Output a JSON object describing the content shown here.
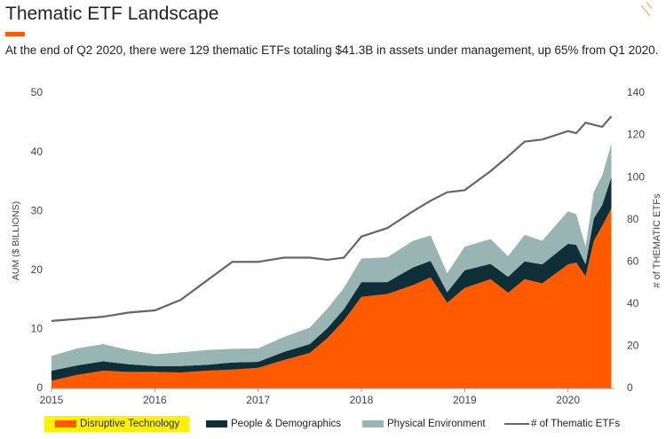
{
  "chart_data": {
    "type": "stacked_area_line",
    "title": "Thematic ETF Landscape",
    "subtitle": "At the end of Q2 2020, there were 129 thematic ETFs totaling $41.3B in assets under management, up 65% from Q1 2020.",
    "y_label": "AUM ($ BILLIONS)",
    "y2_label": "# of THEMATIC ETFs",
    "x": [
      2015.0,
      2015.25,
      2015.5,
      2015.75,
      2016.0,
      2016.25,
      2016.5,
      2016.75,
      2017.0,
      2017.25,
      2017.5,
      2017.67,
      2017.83,
      2018.0,
      2018.25,
      2018.5,
      2018.67,
      2018.83,
      2019.0,
      2019.25,
      2019.42,
      2019.58,
      2019.75,
      2020.0,
      2020.08,
      2020.17,
      2020.25,
      2020.33,
      2020.42
    ],
    "xlim": [
      2015,
      2020.45
    ],
    "xticks": [
      2015,
      2016,
      2017,
      2018,
      2019,
      2020
    ],
    "ylim": [
      0,
      50
    ],
    "yticks": [
      0,
      10,
      20,
      30,
      40,
      50
    ],
    "y2lim": [
      0,
      140
    ],
    "y2ticks": [
      0,
      20,
      40,
      60,
      80,
      100,
      120,
      140
    ],
    "legend": "bottom",
    "series": [
      {
        "name": "Disruptive Technology",
        "color": "#ff5a00",
        "stack": true,
        "values": [
          1.3,
          2.3,
          3.0,
          2.8,
          2.8,
          2.7,
          3.0,
          3.2,
          3.5,
          4.8,
          6.0,
          8.5,
          11.5,
          15.5,
          16.0,
          17.5,
          18.8,
          14.5,
          17.0,
          18.5,
          16.2,
          18.5,
          17.8,
          21.0,
          21.3,
          19.0,
          25.0,
          27.5,
          30.5
        ]
      },
      {
        "name": "People & Demographics",
        "color": "#0e2f38",
        "stack": true,
        "values": [
          1.7,
          1.6,
          1.6,
          1.3,
          1.0,
          1.1,
          1.0,
          1.2,
          1.0,
          1.4,
          1.5,
          1.7,
          1.9,
          2.5,
          2.0,
          3.0,
          2.8,
          1.8,
          3.0,
          2.6,
          2.7,
          3.0,
          3.2,
          3.5,
          3.0,
          2.0,
          3.8,
          3.5,
          5.3
        ]
      },
      {
        "name": "Physical Environment",
        "color": "#98b5b3",
        "stack": true,
        "values": [
          2.5,
          2.9,
          2.9,
          2.4,
          2.0,
          2.3,
          2.5,
          2.3,
          2.3,
          2.5,
          2.8,
          3.3,
          3.6,
          4.0,
          4.2,
          4.5,
          4.3,
          3.2,
          4.0,
          4.2,
          3.5,
          4.5,
          4.0,
          5.5,
          5.2,
          3.0,
          4.5,
          5.0,
          5.6
        ]
      },
      {
        "name": "# of Thematic ETFs",
        "color": "#666666",
        "axis": "y2",
        "values": [
          32,
          33,
          34,
          36,
          37,
          42,
          51,
          60,
          60,
          62,
          62,
          61,
          62,
          72,
          76,
          84,
          89,
          93,
          94,
          103,
          110,
          117,
          118,
          122,
          121,
          126,
          125,
          124,
          129
        ]
      }
    ]
  }
}
